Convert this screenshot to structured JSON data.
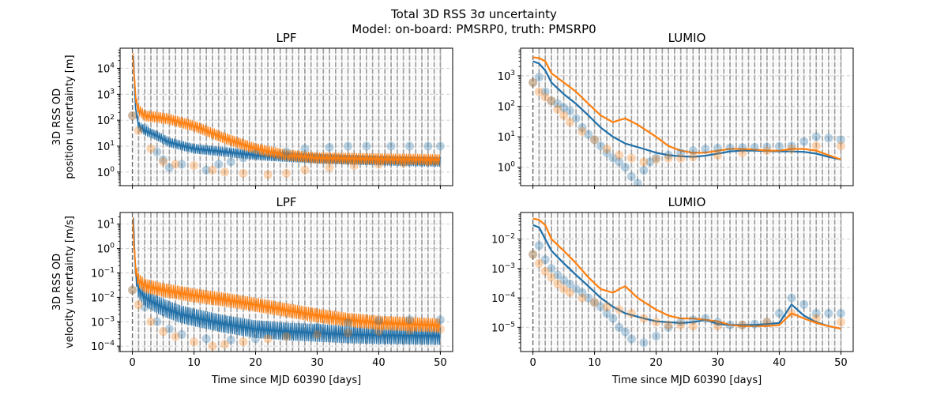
{
  "figure": {
    "title_line1": "Total 3D RSS 3σ uncertainty",
    "title_line2": "Model: on-board: PMSRP0, truth: PMSRP0"
  },
  "colors": {
    "series_lpf_blue": "#1f6fa8",
    "series_orange": "#ff7f0e",
    "vline_gray": "#a0a0a0",
    "vline_white": "#f4f4f4",
    "grid": "#cccccc"
  },
  "chart_data": [
    {
      "type": "line",
      "title": "LPF",
      "xlabel": "",
      "ylabel": "3D RSS OD\nposition uncertainty [m]",
      "xlim": [
        -2,
        52
      ],
      "ylim": [
        0.3,
        60000
      ],
      "yscale": "log",
      "xticks": [
        0,
        10,
        20,
        30,
        40,
        50
      ],
      "yticks": [
        {
          "v": 1,
          "label": "10^0"
        },
        {
          "v": 10,
          "label": "10^1"
        },
        {
          "v": 100,
          "label": "10^2"
        },
        {
          "v": 1000,
          "label": "10^3"
        },
        {
          "v": 10000,
          "label": "10^4"
        }
      ],
      "grid": "y-dashed",
      "series": [
        {
          "color": "#1f6fa8",
          "kind": "line-oscillating",
          "x": [
            0.2,
            0.5,
            1,
            2,
            4,
            6,
            10,
            15,
            20,
            25,
            30,
            35,
            40,
            45,
            50
          ],
          "y": [
            20000,
            300,
            60,
            40,
            25,
            14,
            8,
            6,
            4.5,
            3.8,
            3.3,
            3.0,
            2.8,
            2.6,
            2.5
          ],
          "amp": 0.35
        },
        {
          "color": "#ff7f0e",
          "kind": "line-oscillating",
          "x": [
            0.1,
            0.3,
            0.6,
            1,
            2,
            4,
            6,
            8,
            10,
            15,
            20,
            25,
            30,
            40,
            50
          ],
          "y": [
            25000,
            5000,
            500,
            250,
            150,
            130,
            110,
            80,
            60,
            20,
            8,
            4.5,
            3.5,
            3.2,
            3.0
          ],
          "amp": 0.4
        },
        {
          "color": "#1f6fa8",
          "kind": "scatter",
          "x": [
            0,
            2,
            4,
            5,
            6,
            8,
            12,
            14,
            16,
            18,
            20,
            25,
            28,
            32,
            35,
            38,
            42,
            45,
            48,
            50
          ],
          "y": [
            150,
            50,
            6,
            3,
            1.5,
            2,
            1.2,
            2,
            2.5,
            3.5,
            5,
            6,
            8,
            9,
            10,
            10,
            10,
            10,
            10,
            10
          ]
        },
        {
          "color": "#ff7f0e",
          "kind": "scatter",
          "x": [
            0,
            1,
            3,
            5,
            7,
            10,
            13,
            15,
            18,
            22,
            25,
            28,
            32,
            36,
            40,
            44,
            48
          ],
          "y": [
            150,
            40,
            8,
            2.5,
            2,
            1.8,
            1.2,
            1,
            0.9,
            0.8,
            0.9,
            1.2,
            1.5,
            1.8,
            2,
            2.2,
            2.5
          ]
        }
      ]
    },
    {
      "type": "line",
      "title": "LUMIO",
      "xlabel": "",
      "ylabel": "",
      "xlim": [
        -2,
        52
      ],
      "ylim": [
        0.25,
        8000
      ],
      "yscale": "log",
      "xticks": [
        0,
        10,
        20,
        30,
        40,
        50
      ],
      "yticks": [
        {
          "v": 1,
          "label": "10^0"
        },
        {
          "v": 10,
          "label": "10^1"
        },
        {
          "v": 100,
          "label": "10^2"
        },
        {
          "v": 1000,
          "label": "10^3"
        }
      ],
      "grid": "y-dashed",
      "series": [
        {
          "color": "#1f6fa8",
          "kind": "line",
          "x": [
            0,
            1,
            2,
            3,
            5,
            7,
            9,
            11,
            13,
            15,
            18,
            20,
            22,
            24,
            26,
            28,
            30,
            32,
            34,
            36,
            38,
            40,
            42,
            44,
            46,
            48,
            50
          ],
          "y": [
            3000,
            2500,
            1500,
            600,
            250,
            120,
            50,
            20,
            10,
            6,
            4,
            3,
            2.5,
            2.3,
            2.2,
            2.4,
            2.8,
            3.3,
            3.5,
            3.5,
            3.4,
            3.3,
            3.3,
            3.2,
            2.8,
            2.2,
            1.8
          ]
        },
        {
          "color": "#ff7f0e",
          "kind": "line",
          "x": [
            0,
            1,
            2,
            3,
            5,
            7,
            9,
            11,
            13,
            14,
            15,
            17,
            20,
            22,
            24,
            26,
            28,
            30,
            32,
            34,
            36,
            38,
            40,
            42,
            44,
            46,
            48,
            50
          ],
          "y": [
            4000,
            3800,
            3000,
            1200,
            600,
            300,
            120,
            50,
            30,
            35,
            40,
            25,
            10,
            5,
            3.5,
            3,
            3,
            3.5,
            4,
            4,
            3.8,
            3.5,
            3.5,
            4,
            4,
            3.5,
            2.5,
            1.8
          ]
        },
        {
          "color": "#1f6fa8",
          "kind": "scatter",
          "x": [
            0,
            1,
            2,
            3,
            4,
            5,
            6,
            7,
            8,
            9,
            10,
            11,
            12,
            13,
            14,
            15,
            16,
            17,
            18,
            19,
            20,
            22,
            24,
            26,
            28,
            30,
            32,
            34,
            36,
            38,
            40,
            42,
            44,
            46,
            48,
            50
          ],
          "y": [
            600,
            900,
            300,
            150,
            120,
            90,
            70,
            40,
            20,
            12,
            8,
            5,
            3,
            2,
            1.5,
            1,
            0.5,
            0.3,
            0.8,
            1.5,
            2,
            2.5,
            3,
            3.5,
            4,
            4.2,
            4.3,
            4.4,
            4.5,
            4.6,
            4.8,
            5,
            7,
            10,
            9,
            8
          ]
        },
        {
          "color": "#ff7f0e",
          "kind": "scatter",
          "x": [
            0,
            1,
            2,
            3,
            4,
            5,
            6,
            8,
            10,
            12,
            14,
            16,
            18,
            20,
            22,
            24,
            26,
            30,
            34,
            38,
            42,
            46,
            50
          ],
          "y": [
            600,
            300,
            200,
            150,
            80,
            50,
            30,
            15,
            8,
            4,
            2.5,
            2,
            1.5,
            1.8,
            2,
            2,
            2.2,
            2.5,
            3,
            3.5,
            4,
            5,
            5
          ]
        }
      ]
    },
    {
      "type": "line",
      "title": "LPF",
      "xlabel": "Time since MJD 60390 [days]",
      "ylabel": "3D RSS OD\nvelocity uncertainty [m/s]",
      "xlim": [
        -2,
        52
      ],
      "ylim": [
        6e-05,
        30
      ],
      "yscale": "log",
      "xticks": [
        0,
        10,
        20,
        30,
        40,
        50
      ],
      "yticks": [
        {
          "v": 0.0001,
          "label": "10^-4"
        },
        {
          "v": 0.001,
          "label": "10^-3"
        },
        {
          "v": 0.01,
          "label": "10^-2"
        },
        {
          "v": 0.1,
          "label": "10^-1"
        },
        {
          "v": 1,
          "label": "10^0"
        },
        {
          "v": 10,
          "label": "10^1"
        }
      ],
      "grid": "y-dashed",
      "series": [
        {
          "color": "#1f6fa8",
          "kind": "line-oscillating",
          "x": [
            0.2,
            0.5,
            1,
            2,
            4,
            6,
            8,
            10,
            15,
            20,
            25,
            30,
            35,
            40,
            45,
            50
          ],
          "y": [
            8,
            0.1,
            0.02,
            0.01,
            0.005,
            0.003,
            0.002,
            0.0015,
            0.0008,
            0.0005,
            0.0004,
            0.00035,
            0.0003,
            0.00028,
            0.00027,
            0.00026
          ],
          "amp": 0.7
        },
        {
          "color": "#ff7f0e",
          "kind": "line-oscillating",
          "x": [
            0.1,
            0.3,
            0.6,
            1,
            2,
            5,
            10,
            15,
            20,
            25,
            30,
            35,
            40,
            45,
            50
          ],
          "y": [
            10,
            1,
            0.1,
            0.05,
            0.03,
            0.02,
            0.012,
            0.008,
            0.005,
            0.003,
            0.0018,
            0.0012,
            0.0009,
            0.0008,
            0.0007
          ],
          "amp": 0.55
        },
        {
          "color": "#1f6fa8",
          "kind": "scatter",
          "x": [
            0,
            2,
            4,
            6,
            8,
            12,
            16,
            20,
            25,
            30,
            35,
            40,
            45,
            50
          ],
          "y": [
            0.02,
            0.004,
            0.001,
            0.0005,
            0.0003,
            0.0002,
            0.00018,
            0.0002,
            0.0003,
            0.0006,
            0.0009,
            0.0011,
            0.0012,
            0.0012
          ]
        },
        {
          "color": "#ff7f0e",
          "kind": "scatter",
          "x": [
            0,
            1,
            3,
            5,
            7,
            10,
            13,
            15,
            18,
            22,
            25,
            30,
            35,
            40,
            45,
            50
          ],
          "y": [
            0.02,
            0.005,
            0.001,
            0.0004,
            0.00025,
            0.00015,
            0.0001,
            0.00012,
            0.00015,
            0.0002,
            0.00025,
            0.0003,
            0.00035,
            0.0004,
            0.00045,
            0.0005
          ]
        }
      ]
    },
    {
      "type": "line",
      "title": "LUMIO",
      "xlabel": "Time since MJD 60390 [days]",
      "ylabel": "",
      "xlim": [
        -2,
        52
      ],
      "ylim": [
        1.5e-06,
        0.08
      ],
      "yscale": "log",
      "xticks": [
        0,
        10,
        20,
        30,
        40,
        50
      ],
      "yticks": [
        {
          "v": 1e-05,
          "label": "10^-5"
        },
        {
          "v": 0.0001,
          "label": "10^-4"
        },
        {
          "v": 0.001,
          "label": "10^-3"
        },
        {
          "v": 0.01,
          "label": "10^-2"
        }
      ],
      "grid": "y-dashed",
      "series": [
        {
          "color": "#1f6fa8",
          "kind": "line",
          "x": [
            0,
            1,
            2,
            3,
            5,
            7,
            9,
            11,
            13,
            15,
            18,
            20,
            22,
            24,
            26,
            28,
            30,
            32,
            34,
            36,
            38,
            40,
            42,
            44,
            46,
            48,
            50
          ],
          "y": [
            0.03,
            0.025,
            0.01,
            0.004,
            0.0015,
            0.0006,
            0.00025,
            0.0001,
            5e-05,
            3e-05,
            2e-05,
            1.6e-05,
            1.5e-05,
            1.4e-05,
            1.5e-05,
            1.8e-05,
            1.3e-05,
            1.2e-05,
            1.2e-05,
            1.2e-05,
            1.3e-05,
            1.4e-05,
            6e-05,
            2.5e-05,
            1.5e-05,
            1.1e-05,
            9e-06
          ]
        },
        {
          "color": "#ff7f0e",
          "kind": "line",
          "x": [
            0,
            1,
            2,
            3,
            5,
            7,
            9,
            11,
            13,
            14,
            15,
            17,
            20,
            22,
            24,
            26,
            28,
            30,
            32,
            34,
            36,
            38,
            40,
            42,
            44,
            46,
            48,
            50
          ],
          "y": [
            0.05,
            0.045,
            0.03,
            0.01,
            0.004,
            0.0015,
            0.0005,
            0.0002,
            0.00015,
            0.0002,
            0.00025,
            0.0001,
            4e-05,
            2.5e-05,
            2e-05,
            2e-05,
            1.8e-05,
            1.6e-05,
            1.2e-05,
            1.1e-05,
            1.1e-05,
            1.1e-05,
            1.2e-05,
            3e-05,
            2e-05,
            1.4e-05,
            1.1e-05,
            9e-06
          ]
        },
        {
          "color": "#1f6fa8",
          "kind": "scatter",
          "x": [
            0,
            1,
            2,
            3,
            4,
            5,
            6,
            7,
            8,
            9,
            10,
            11,
            12,
            13,
            14,
            15,
            16,
            18,
            20,
            22,
            24,
            26,
            28,
            30,
            32,
            34,
            36,
            38,
            40,
            42,
            44,
            46,
            48,
            50
          ],
          "y": [
            0.003,
            0.006,
            0.002,
            0.001,
            0.0006,
            0.0004,
            0.0003,
            0.0002,
            0.00015,
            0.0001,
            7e-05,
            5e-05,
            3e-05,
            2e-05,
            1e-05,
            7e-06,
            4e-06,
            3e-06,
            5e-06,
            1e-05,
            1.5e-05,
            1.8e-05,
            2e-05,
            1.5e-05,
            1.2e-05,
            1.2e-05,
            1.3e-05,
            1.5e-05,
            3e-05,
            0.0001,
            6e-05,
            3e-05,
            3e-05,
            3e-05
          ]
        },
        {
          "color": "#ff7f0e",
          "kind": "scatter",
          "x": [
            0,
            1,
            2,
            3,
            4,
            5,
            6,
            8,
            10,
            12,
            14,
            16,
            18,
            20,
            22,
            24,
            26,
            30,
            34,
            38,
            42,
            46,
            50
          ],
          "y": [
            0.003,
            0.0015,
            0.0008,
            0.0005,
            0.0003,
            0.0002,
            0.00015,
            0.0001,
            7e-05,
            5e-05,
            4e-05,
            3e-05,
            2e-05,
            1.5e-05,
            1.2e-05,
            1.2e-05,
            1.1e-05,
            1.1e-05,
            1.2e-05,
            1.5e-05,
            3e-05,
            2e-05,
            1.5e-05
          ]
        }
      ]
    }
  ]
}
